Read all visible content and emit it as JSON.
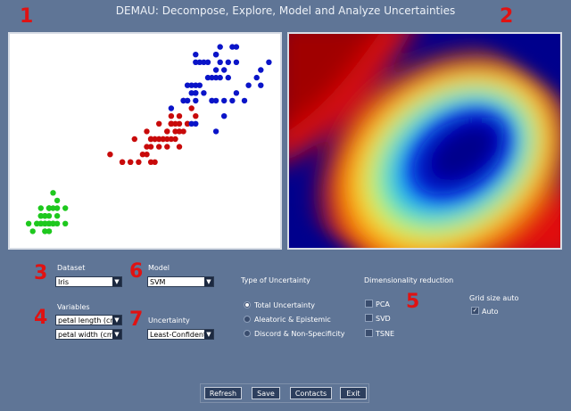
{
  "window": {
    "title": "DEMAU: Decompose, Explore, Model and Analyze Uncertainties"
  },
  "annotations": [
    "1",
    "2",
    "3",
    "4",
    "5",
    "6",
    "7"
  ],
  "dataset": {
    "label": "Dataset",
    "value": "Iris"
  },
  "model": {
    "label": "Model",
    "value": "SVM"
  },
  "variables": {
    "label": "Variables",
    "x_value": "petal length (cm)",
    "y_value": "petal width (cm)"
  },
  "uncertainty": {
    "label": "Uncertainty",
    "value": "Least-Confident"
  },
  "type_of_uncertainty": {
    "label": "Type of Uncertainty",
    "options": [
      "Total Uncertainty",
      "Aleatoric & Epistemic",
      "Discord  & Non-Specificity"
    ],
    "selected": "Total Uncertainty"
  },
  "dimensionality": {
    "label": "Dimensionality reduction",
    "options": [
      "PCA",
      "SVD",
      "TSNE"
    ]
  },
  "grid": {
    "label": "Grid size auto",
    "checkbox_label": "Auto",
    "checked": true
  },
  "buttons": {
    "refresh": "Refresh",
    "save": "Save",
    "contacts": "Contacts",
    "exit": "Exit"
  },
  "colors": {
    "background": "#5f7596",
    "setosa": "#1ec81e",
    "versicolor": "#c80a0a",
    "virginica": "#0a14c8",
    "annotation": "#e01212"
  },
  "chart_data": {
    "type": "scatter",
    "title": "",
    "xlabel": "",
    "ylabel": "",
    "xlim": [
      0.8,
      7.0
    ],
    "ylim": [
      0.0,
      2.6
    ],
    "grid": false,
    "series": [
      {
        "color": "#1ec81e",
        "points": [
          [
            1.4,
            0.2
          ],
          [
            1.4,
            0.2
          ],
          [
            1.3,
            0.2
          ],
          [
            1.5,
            0.2
          ],
          [
            1.4,
            0.2
          ],
          [
            1.7,
            0.4
          ],
          [
            1.4,
            0.3
          ],
          [
            1.5,
            0.2
          ],
          [
            1.4,
            0.2
          ],
          [
            1.5,
            0.1
          ],
          [
            1.5,
            0.2
          ],
          [
            1.6,
            0.2
          ],
          [
            1.4,
            0.1
          ],
          [
            1.1,
            0.1
          ],
          [
            1.2,
            0.2
          ],
          [
            1.5,
            0.4
          ],
          [
            1.3,
            0.4
          ],
          [
            1.4,
            0.3
          ],
          [
            1.7,
            0.3
          ],
          [
            1.5,
            0.3
          ],
          [
            1.7,
            0.2
          ],
          [
            1.5,
            0.4
          ],
          [
            1.0,
            0.2
          ],
          [
            1.7,
            0.5
          ],
          [
            1.9,
            0.2
          ],
          [
            1.6,
            0.2
          ],
          [
            1.6,
            0.4
          ],
          [
            1.5,
            0.2
          ],
          [
            1.4,
            0.2
          ],
          [
            1.6,
            0.2
          ],
          [
            1.6,
            0.2
          ],
          [
            1.5,
            0.4
          ],
          [
            1.5,
            0.1
          ],
          [
            1.4,
            0.2
          ],
          [
            1.5,
            0.2
          ],
          [
            1.2,
            0.2
          ],
          [
            1.3,
            0.2
          ],
          [
            1.4,
            0.1
          ],
          [
            1.3,
            0.2
          ],
          [
            1.5,
            0.2
          ],
          [
            1.3,
            0.3
          ],
          [
            1.3,
            0.3
          ],
          [
            1.3,
            0.2
          ],
          [
            1.6,
            0.6
          ],
          [
            1.9,
            0.4
          ],
          [
            1.4,
            0.3
          ],
          [
            1.6,
            0.2
          ],
          [
            1.4,
            0.2
          ],
          [
            1.5,
            0.2
          ],
          [
            1.4,
            0.2
          ]
        ]
      },
      {
        "color": "#c80a0a",
        "points": [
          [
            4.7,
            1.4
          ],
          [
            4.5,
            1.5
          ],
          [
            4.9,
            1.5
          ],
          [
            4.0,
            1.3
          ],
          [
            4.6,
            1.5
          ],
          [
            4.5,
            1.3
          ],
          [
            4.7,
            1.6
          ],
          [
            3.3,
            1.0
          ],
          [
            4.6,
            1.3
          ],
          [
            3.9,
            1.4
          ],
          [
            3.5,
            1.0
          ],
          [
            4.2,
            1.5
          ],
          [
            4.0,
            1.0
          ],
          [
            4.7,
            1.4
          ],
          [
            3.6,
            1.3
          ],
          [
            4.4,
            1.4
          ],
          [
            4.5,
            1.5
          ],
          [
            4.1,
            1.0
          ],
          [
            4.5,
            1.5
          ],
          [
            3.9,
            1.1
          ],
          [
            4.8,
            1.8
          ],
          [
            4.0,
            1.3
          ],
          [
            4.9,
            1.5
          ],
          [
            4.7,
            1.2
          ],
          [
            4.3,
            1.3
          ],
          [
            4.4,
            1.4
          ],
          [
            4.8,
            1.4
          ],
          [
            5.0,
            1.7
          ],
          [
            4.5,
            1.5
          ],
          [
            3.5,
            1.0
          ],
          [
            3.8,
            1.1
          ],
          [
            3.7,
            1.0
          ],
          [
            3.9,
            1.2
          ],
          [
            5.1,
            1.6
          ],
          [
            4.5,
            1.5
          ],
          [
            4.5,
            1.6
          ],
          [
            4.7,
            1.5
          ],
          [
            4.4,
            1.3
          ],
          [
            4.1,
            1.3
          ],
          [
            4.0,
            1.3
          ],
          [
            4.4,
            1.2
          ],
          [
            4.6,
            1.4
          ],
          [
            4.0,
            1.2
          ],
          [
            3.3,
            1.0
          ],
          [
            4.2,
            1.3
          ],
          [
            4.2,
            1.2
          ],
          [
            4.2,
            1.3
          ],
          [
            4.3,
            1.3
          ],
          [
            3.0,
            1.1
          ],
          [
            4.1,
            1.3
          ]
        ]
      },
      {
        "color": "#0a14c8",
        "points": [
          [
            6.0,
            2.5
          ],
          [
            5.1,
            1.9
          ],
          [
            5.9,
            2.1
          ],
          [
            5.6,
            1.8
          ],
          [
            5.8,
            2.2
          ],
          [
            6.6,
            2.1
          ],
          [
            4.5,
            1.7
          ],
          [
            6.3,
            1.8
          ],
          [
            5.8,
            1.8
          ],
          [
            6.1,
            2.5
          ],
          [
            5.1,
            2.0
          ],
          [
            5.3,
            1.9
          ],
          [
            5.5,
            2.1
          ],
          [
            5.0,
            2.0
          ],
          [
            5.1,
            2.4
          ],
          [
            5.3,
            2.3
          ],
          [
            5.5,
            1.8
          ],
          [
            6.7,
            2.2
          ],
          [
            6.9,
            2.3
          ],
          [
            5.0,
            1.5
          ],
          [
            5.7,
            2.3
          ],
          [
            4.9,
            2.0
          ],
          [
            6.7,
            2.0
          ],
          [
            4.9,
            1.8
          ],
          [
            5.7,
            2.1
          ],
          [
            6.0,
            1.8
          ],
          [
            4.8,
            1.8
          ],
          [
            4.9,
            1.8
          ],
          [
            5.6,
            2.1
          ],
          [
            5.8,
            1.6
          ],
          [
            6.1,
            1.9
          ],
          [
            6.4,
            2.0
          ],
          [
            5.6,
            2.2
          ],
          [
            5.1,
            1.5
          ],
          [
            5.6,
            1.4
          ],
          [
            6.1,
            2.3
          ],
          [
            5.6,
            2.4
          ],
          [
            5.5,
            1.8
          ],
          [
            4.8,
            1.8
          ],
          [
            5.4,
            2.1
          ],
          [
            5.6,
            2.4
          ],
          [
            5.1,
            2.3
          ],
          [
            5.1,
            1.9
          ],
          [
            5.9,
            2.3
          ],
          [
            5.7,
            2.5
          ],
          [
            5.2,
            2.3
          ],
          [
            5.0,
            1.9
          ],
          [
            5.2,
            2.0
          ],
          [
            5.4,
            2.3
          ],
          [
            5.1,
            1.8
          ]
        ]
      }
    ]
  }
}
